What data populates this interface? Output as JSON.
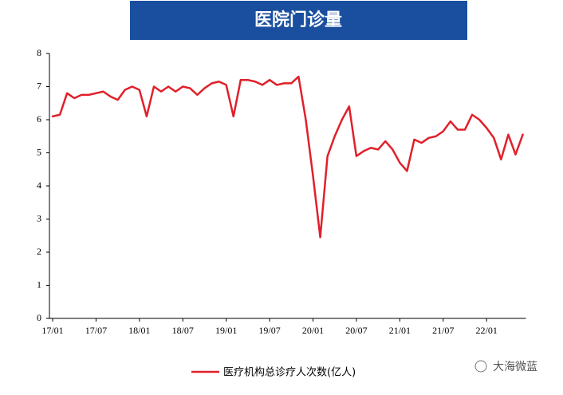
{
  "chart_data": {
    "type": "line",
    "title": "医院门诊量",
    "categories": [
      "17/01",
      null,
      null,
      null,
      null,
      null,
      "17/07",
      null,
      null,
      null,
      null,
      null,
      "18/01",
      null,
      null,
      null,
      null,
      null,
      "18/07",
      null,
      null,
      null,
      null,
      null,
      "19/01",
      null,
      null,
      null,
      null,
      null,
      "19/07",
      null,
      null,
      null,
      null,
      null,
      "20/01",
      null,
      null,
      null,
      null,
      null,
      "20/07",
      null,
      null,
      null,
      null,
      null,
      "21/01",
      null,
      null,
      null,
      null,
      null,
      "21/07",
      null,
      null,
      null,
      null,
      null,
      "22/01",
      null,
      null,
      null,
      null,
      null
    ],
    "series": [
      {
        "name": "医疗机构总诊疗人次数(亿人)",
        "color": "#e0202a",
        "values": [
          6.1,
          6.15,
          6.8,
          6.65,
          6.75,
          6.75,
          6.8,
          6.85,
          6.7,
          6.6,
          6.9,
          7.0,
          6.9,
          6.1,
          7.0,
          6.85,
          7.0,
          6.85,
          7.0,
          6.95,
          6.75,
          6.95,
          7.1,
          7.15,
          7.05,
          6.1,
          7.2,
          7.2,
          7.15,
          7.05,
          7.2,
          7.05,
          7.1,
          7.1,
          7.3,
          6.0,
          4.3,
          2.45,
          4.9,
          5.5,
          6.0,
          6.4,
          4.9,
          5.05,
          5.15,
          5.1,
          5.35,
          5.1,
          4.7,
          4.45,
          5.4,
          5.3,
          5.45,
          5.5,
          5.65,
          5.95,
          5.7,
          5.7,
          6.15,
          6.0,
          5.75,
          5.45,
          4.8,
          5.55,
          4.95,
          5.55
        ]
      }
    ],
    "ylim": [
      0,
      8
    ],
    "yticks": [
      0,
      1,
      2,
      3,
      4,
      5,
      6,
      7,
      8
    ],
    "legend": "bottom",
    "watermark": "大海微蓝"
  }
}
